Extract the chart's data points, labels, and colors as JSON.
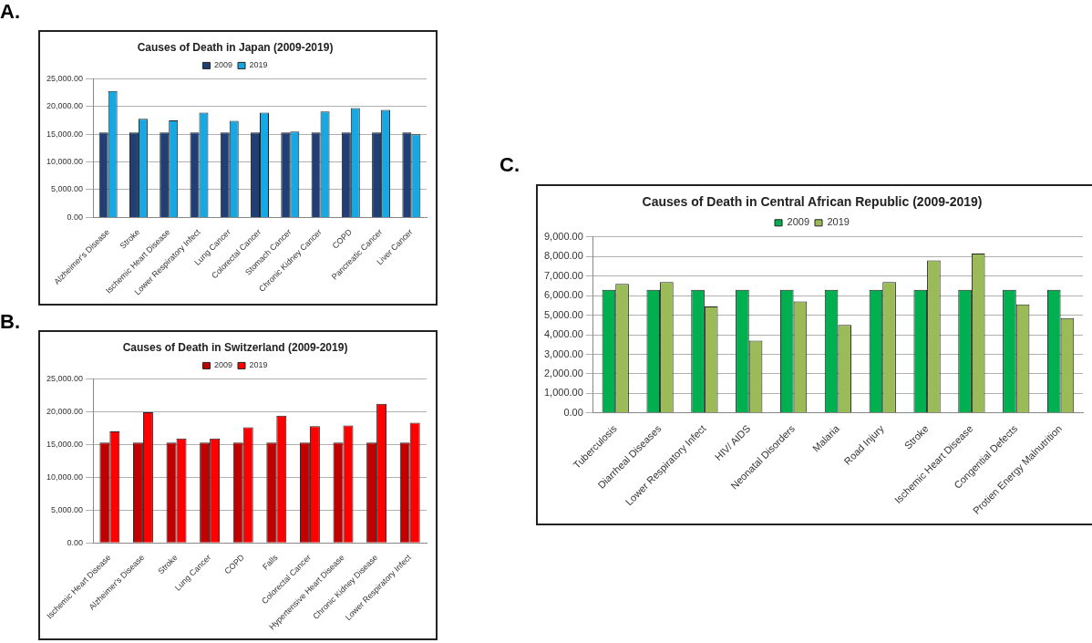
{
  "chart_data": [
    {
      "type": "bar",
      "title": "Causes of Death in Japan (2009-2019)",
      "annotations": [
        "A."
      ],
      "categories": [
        "Alzheimer's Disease",
        "Stroke",
        "Ischemic Heart Disease",
        "Lower Respiratory Infect",
        "Lung Cancer",
        "Colorectal Cancer",
        "Stomach Cancer",
        "Chronic Kidney Cancer",
        "COPD",
        "Pancreatic Cancer",
        "Liver Cancer"
      ],
      "series": [
        {
          "name": "2009",
          "color": "#1f3f75",
          "values": [
            15300,
            15300,
            15300,
            15300,
            15300,
            15300,
            15300,
            15300,
            15300,
            15300,
            15300
          ]
        },
        {
          "name": "2019",
          "color": "#17a7e3",
          "values": [
            22800,
            17800,
            17500,
            18900,
            17400,
            18900,
            15500,
            19100,
            19700,
            19400,
            15000
          ]
        }
      ],
      "ylim": [
        0,
        25000
      ],
      "yticks": [
        {
          "value": 0,
          "label": "0.00"
        },
        {
          "value": 5000,
          "label": "5,000.00"
        },
        {
          "value": 10000,
          "label": "10,000.00"
        },
        {
          "value": 15000,
          "label": "15,000.00"
        },
        {
          "value": 20000,
          "label": "20,000.00"
        },
        {
          "value": 25000,
          "label": "25,000.00"
        }
      ],
      "grid": "y",
      "legend": "top"
    },
    {
      "type": "bar",
      "title": "Causes of Death in Switzerland (2009-2019)",
      "annotations": [
        "B."
      ],
      "categories": [
        "Ischemic Heart Disease",
        "Alzheimer's Disease",
        "Stroke",
        "Lung Cancer",
        "COPD",
        "Falls",
        "Colorectal Cancer",
        "Hypertensive Heart Disease",
        "Chronic Kidney Disease",
        "Lower Respiratory Infect"
      ],
      "series": [
        {
          "name": "2009",
          "color": "#c00000",
          "values": [
            15300,
            15300,
            15300,
            15300,
            15300,
            15300,
            15300,
            15300,
            15300,
            15300
          ]
        },
        {
          "name": "2019",
          "color": "#ff0000",
          "values": [
            17000,
            19900,
            15900,
            15900,
            17600,
            19400,
            17800,
            17900,
            21200,
            18300
          ]
        }
      ],
      "ylim": [
        0,
        25000
      ],
      "yticks": [
        {
          "value": 0,
          "label": "0.00"
        },
        {
          "value": 5000,
          "label": "5,000.00"
        },
        {
          "value": 10000,
          "label": "10,000.00"
        },
        {
          "value": 15000,
          "label": "15,000.00"
        },
        {
          "value": 20000,
          "label": "20,000.00"
        },
        {
          "value": 25000,
          "label": "25,000.00"
        }
      ],
      "grid": "y",
      "legend": "top"
    },
    {
      "type": "bar",
      "title": "Causes of Death in Central African Republic (2009-2019)",
      "annotations": [
        "C."
      ],
      "categories": [
        "Tuberculosis",
        "Diarrheal Diseases",
        "Lower Respiratory Infect",
        "HIV/ AIDS",
        "Neonatal Disorders",
        "Malaria",
        "Road Injury",
        "Stroke",
        "Ischemic Heart Disease",
        "Congential Defects",
        "Protien Energy Malnutrition"
      ],
      "series": [
        {
          "name": "2009",
          "color": "#00b050",
          "values": [
            6300,
            6300,
            6300,
            6300,
            6300,
            6300,
            6300,
            6300,
            6300,
            6300,
            6300
          ]
        },
        {
          "name": "2019",
          "color": "#9bbb59",
          "values": [
            6600,
            6700,
            5450,
            3700,
            5700,
            4500,
            6700,
            7800,
            8150,
            5550,
            4850
          ]
        }
      ],
      "ylim": [
        0,
        9000
      ],
      "yticks": [
        {
          "value": 0,
          "label": "0.00"
        },
        {
          "value": 1000,
          "label": "1,000.00"
        },
        {
          "value": 2000,
          "label": "2,000.00"
        },
        {
          "value": 3000,
          "label": "3,000.00"
        },
        {
          "value": 4000,
          "label": "4,000.00"
        },
        {
          "value": 5000,
          "label": "5,000.00"
        },
        {
          "value": 6000,
          "label": "6,000.00"
        },
        {
          "value": 7000,
          "label": "7,000.00"
        },
        {
          "value": 8000,
          "label": "8,000.00"
        },
        {
          "value": 9000,
          "label": "9,000.00"
        }
      ],
      "grid": "y",
      "legend": "top"
    }
  ]
}
